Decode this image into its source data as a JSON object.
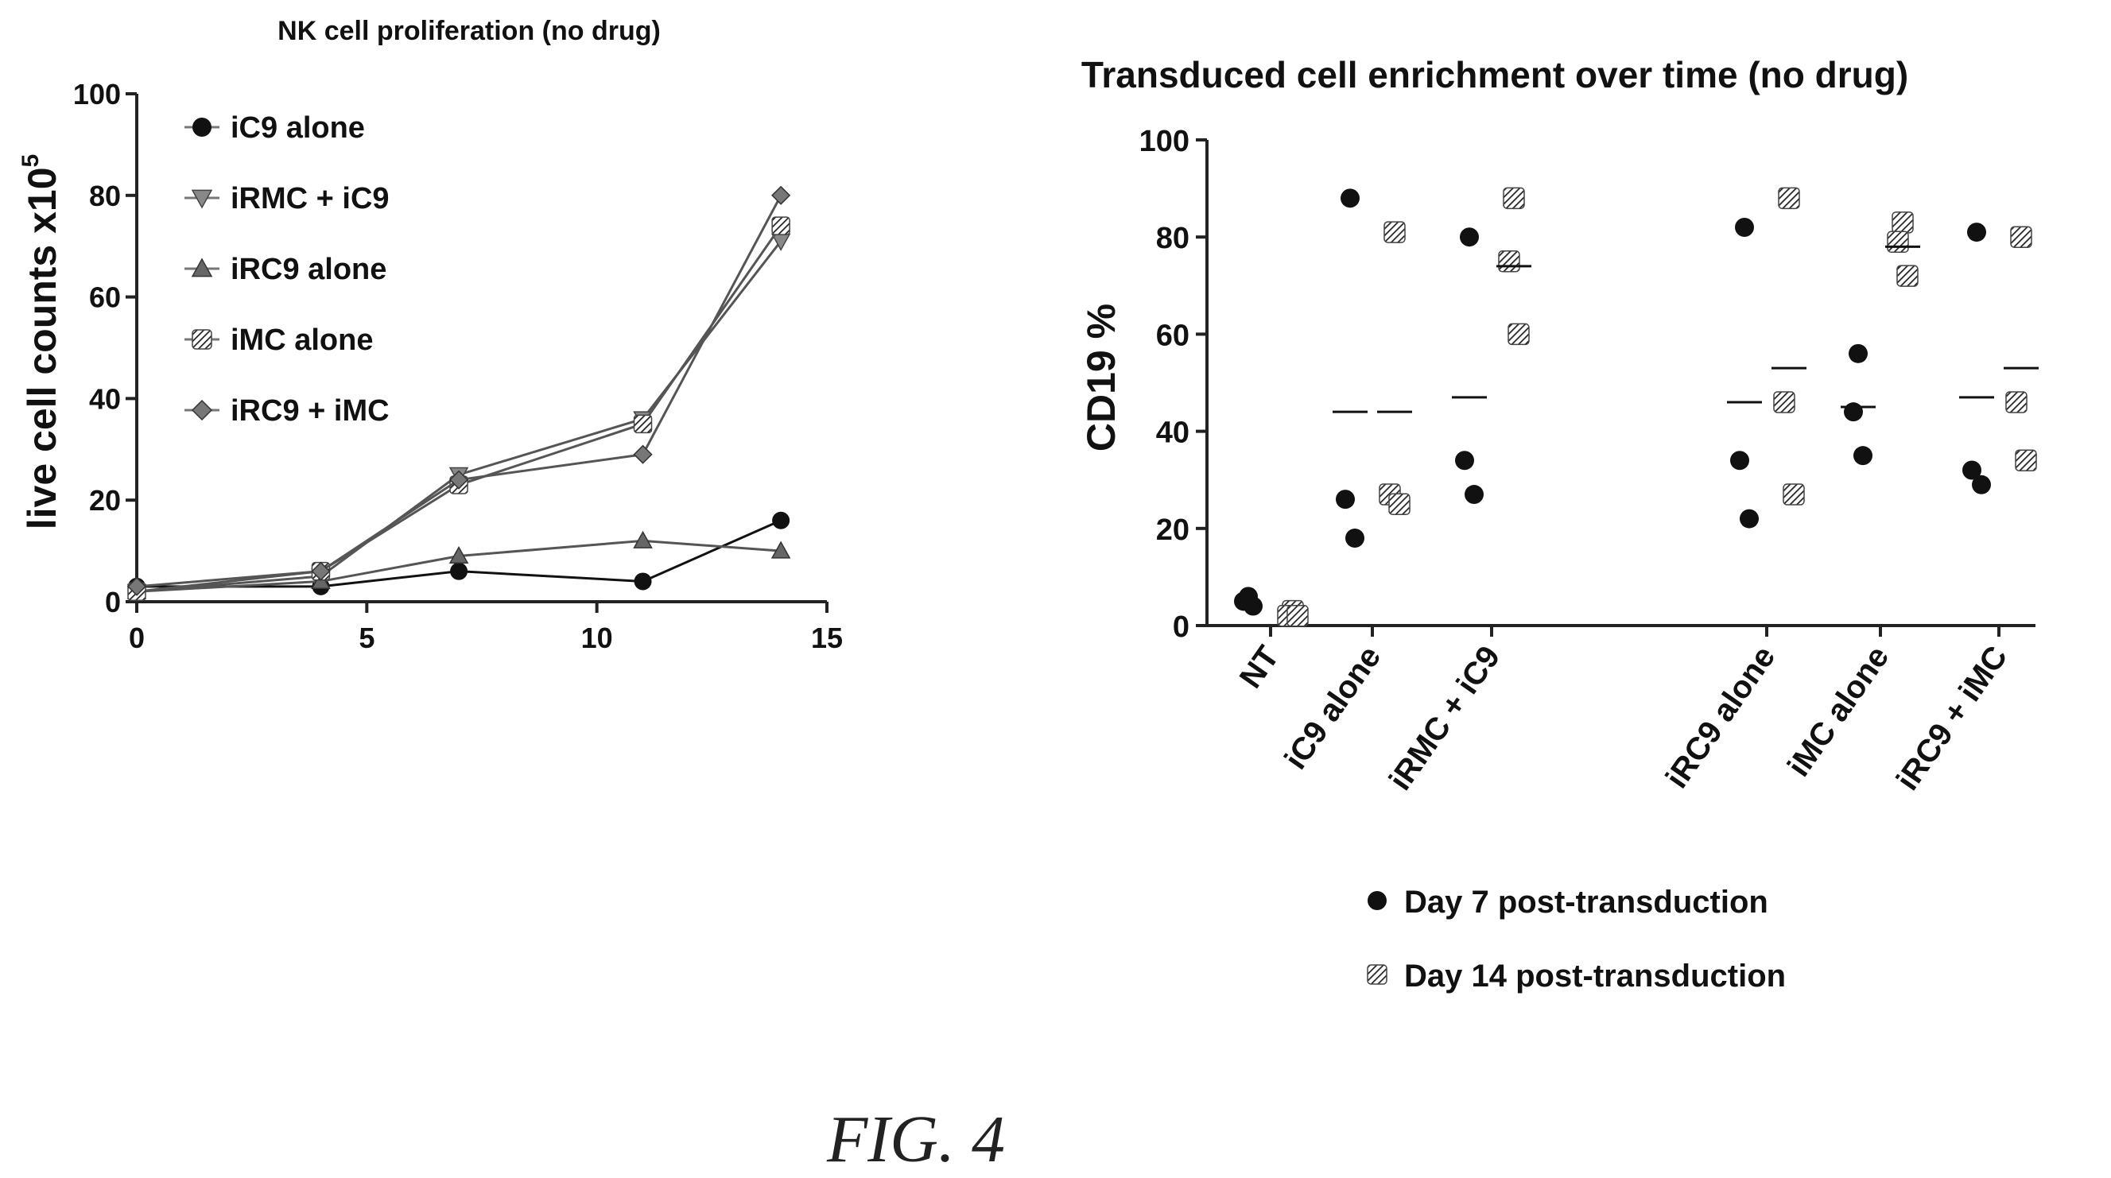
{
  "figure_label": "FIG. 4",
  "chart_data": [
    {
      "type": "line",
      "title": "NK cell proliferation (no drug)",
      "xlabel": "",
      "ylabel": "live cell counts x10",
      "ylabel_superscript": "5",
      "xlim": [
        0,
        15
      ],
      "ylim": [
        0,
        100
      ],
      "x_ticks": [
        0,
        5,
        10,
        15
      ],
      "y_ticks": [
        0,
        20,
        40,
        60,
        80,
        100
      ],
      "x_tick_labels": [
        "0",
        "5",
        "10",
        "15"
      ],
      "y_tick_labels": [
        "0",
        "20",
        "40",
        "60",
        "80",
        "100"
      ],
      "legend_position": "top-left",
      "x": [
        0,
        4,
        7,
        11,
        14
      ],
      "series": [
        {
          "name": "iC9 alone",
          "marker": "circle",
          "values": [
            3,
            3,
            6,
            4,
            16
          ]
        },
        {
          "name": "iRMC + iC9",
          "marker": "triangle-down",
          "values": [
            2,
            5,
            25,
            36,
            71
          ]
        },
        {
          "name": "iRC9 alone",
          "marker": "triangle-up",
          "values": [
            2,
            4,
            9,
            12,
            10
          ]
        },
        {
          "name": "iMC alone",
          "marker": "hatched-square",
          "values": [
            2,
            6,
            23,
            35,
            74
          ]
        },
        {
          "name": "iRC9 + iMC",
          "marker": "diamond",
          "values": [
            3,
            6,
            24,
            29,
            80
          ]
        }
      ]
    },
    {
      "type": "scatter",
      "title": "Transduced cell enrichment over time (no drug)",
      "xlabel": "",
      "ylabel": "CD19 %",
      "ylim": [
        0,
        100
      ],
      "y_ticks": [
        0,
        20,
        40,
        60,
        80,
        100
      ],
      "y_tick_labels": [
        "0",
        "20",
        "40",
        "60",
        "80",
        "100"
      ],
      "legend_position": "bottom",
      "categories": [
        "NT",
        "iC9 alone",
        "iRMC + iC9",
        "iRC9 alone",
        "iMC alone",
        "iRC9 + iMC"
      ],
      "series": [
        {
          "name": "Day 7 post-transduction",
          "marker": "circle",
          "points": [
            [
              6,
              5,
              4
            ],
            [
              88,
              26,
              18
            ],
            [
              80,
              34,
              27
            ],
            [
              82,
              34,
              22
            ],
            [
              56,
              44,
              35
            ],
            [
              81,
              32,
              29
            ]
          ],
          "means": [
            5,
            44,
            47,
            46,
            45,
            47
          ]
        },
        {
          "name": "Day 14 post-transduction",
          "marker": "hatched-square",
          "points": [
            [
              3,
              2,
              2
            ],
            [
              81,
              27,
              25
            ],
            [
              88,
              75,
              60
            ],
            [
              88,
              46,
              27
            ],
            [
              83,
              79,
              72
            ],
            [
              80,
              46,
              34
            ]
          ],
          "means": [
            2,
            44,
            74,
            53,
            78,
            53
          ]
        }
      ]
    }
  ]
}
